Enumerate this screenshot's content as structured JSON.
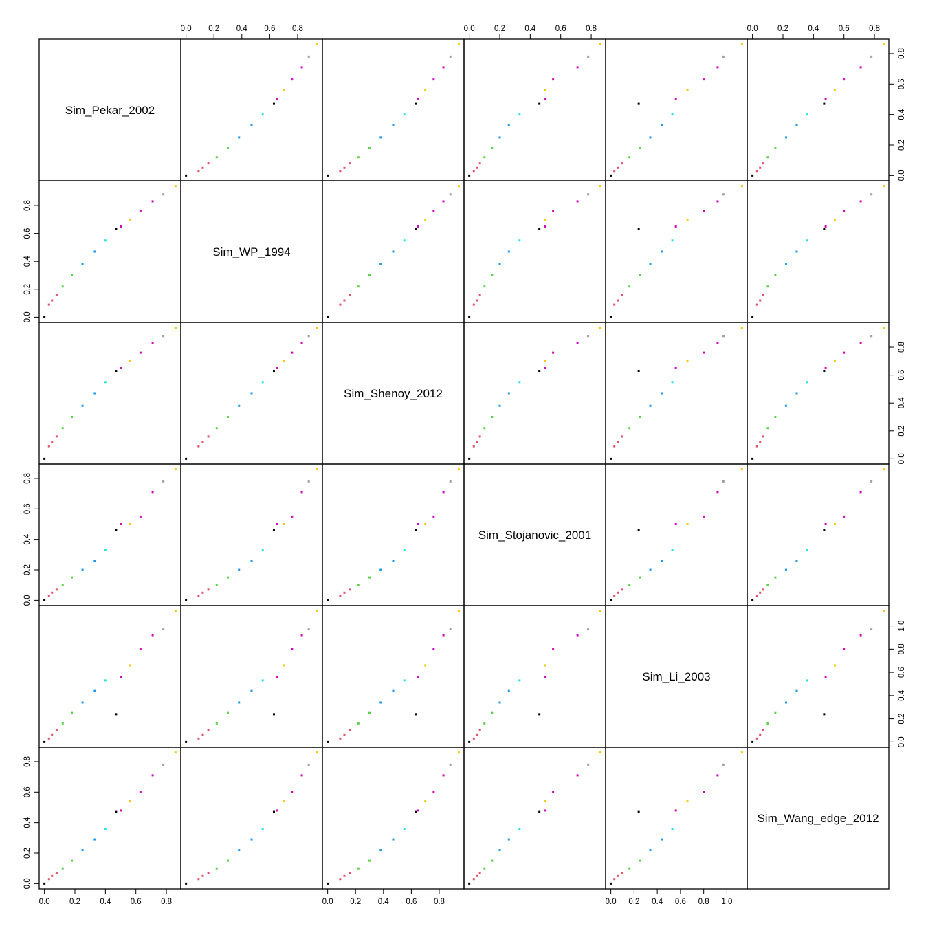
{
  "chart_data": {
    "type": "scatter",
    "subtype": "pairs-matrix",
    "variables": [
      {
        "name": "Sim_Pekar_2002",
        "lim": [
          0,
          0.86
        ],
        "ticks": [
          0.0,
          0.2,
          0.4,
          0.6,
          0.8
        ],
        "tick_labels": [
          "0.0",
          "0.2",
          "0.4",
          "0.6",
          "0.8"
        ]
      },
      {
        "name": "Sim_WP_1994",
        "lim": [
          0,
          0.94
        ],
        "ticks": [
          0.0,
          0.2,
          0.4,
          0.6,
          0.8
        ],
        "tick_labels": [
          "0.0",
          "0.2",
          "0.4",
          "0.6",
          "0.8"
        ]
      },
      {
        "name": "Sim_Shenoy_2012",
        "lim": [
          0,
          0.94
        ],
        "ticks": [
          0.0,
          0.2,
          0.4,
          0.6,
          0.8
        ],
        "tick_labels": [
          "0.0",
          "0.2",
          "0.4",
          "0.6",
          "0.8"
        ]
      },
      {
        "name": "Sim_Stojanovic_2001",
        "lim": [
          0,
          0.86
        ],
        "ticks": [
          0.0,
          0.2,
          0.4,
          0.6,
          0.8
        ],
        "tick_labels": [
          "0.0",
          "0.2",
          "0.4",
          "0.6",
          "0.8"
        ]
      },
      {
        "name": "Sim_Li_2003",
        "lim": [
          0,
          1.13
        ],
        "ticks": [
          0.0,
          0.2,
          0.4,
          0.6,
          0.8,
          1.0
        ],
        "tick_labels": [
          "0.0",
          "0.2",
          "0.4",
          "0.6",
          "0.8",
          "1.0"
        ]
      },
      {
        "name": "Sim_Wang_edge_2012",
        "lim": [
          0,
          0.86
        ],
        "ticks": [
          0.0,
          0.2,
          0.4,
          0.6,
          0.8
        ],
        "tick_labels": [
          "0.0",
          "0.2",
          "0.4",
          "0.6",
          "0.8"
        ]
      }
    ],
    "axes": {
      "top_axis_columns": [
        1,
        3,
        5
      ],
      "bottom_axis_columns": [
        0,
        2,
        4
      ],
      "left_axis_rows": [
        1,
        3,
        5
      ],
      "right_axis_rows": [
        0,
        2,
        4
      ]
    },
    "group_colors": {
      "black": "#000000",
      "red": "#DF536B",
      "green": "#61D04F",
      "blue": "#2297E6",
      "cyan": "#28E2E5",
      "magenta": "#CD0BBC",
      "orange": "#F5C710",
      "gray": "#9E9E9E"
    },
    "points_description": "Pairwise scatterplots of six similarity measures for the same set of node pairs; points colored by group (black, red, green, blue, cyan, magenta, orange, gray).",
    "sample_points": [
      {
        "Sim_Pekar_2002": 0.0,
        "Sim_WP_1994": 0.0,
        "Sim_Shenoy_2012": 0.0,
        "Sim_Stojanovic_2001": 0.0,
        "Sim_Li_2003": 0.0,
        "Sim_Wang_edge_2012": 0.0,
        "group": "black"
      },
      {
        "Sim_Pekar_2002": 0.03,
        "Sim_WP_1994": 0.09,
        "Sim_Shenoy_2012": 0.09,
        "Sim_Stojanovic_2001": 0.03,
        "Sim_Li_2003": 0.03,
        "Sim_Wang_edge_2012": 0.03,
        "group": "red"
      },
      {
        "Sim_Pekar_2002": 0.05,
        "Sim_WP_1994": 0.12,
        "Sim_Shenoy_2012": 0.12,
        "Sim_Stojanovic_2001": 0.05,
        "Sim_Li_2003": 0.06,
        "Sim_Wang_edge_2012": 0.05,
        "group": "red"
      },
      {
        "Sim_Pekar_2002": 0.08,
        "Sim_WP_1994": 0.16,
        "Sim_Shenoy_2012": 0.16,
        "Sim_Stojanovic_2001": 0.07,
        "Sim_Li_2003": 0.1,
        "Sim_Wang_edge_2012": 0.07,
        "group": "red"
      },
      {
        "Sim_Pekar_2002": 0.12,
        "Sim_WP_1994": 0.22,
        "Sim_Shenoy_2012": 0.22,
        "Sim_Stojanovic_2001": 0.1,
        "Sim_Li_2003": 0.16,
        "Sim_Wang_edge_2012": 0.1,
        "group": "green"
      },
      {
        "Sim_Pekar_2002": 0.18,
        "Sim_WP_1994": 0.3,
        "Sim_Shenoy_2012": 0.3,
        "Sim_Stojanovic_2001": 0.15,
        "Sim_Li_2003": 0.25,
        "Sim_Wang_edge_2012": 0.15,
        "group": "green"
      },
      {
        "Sim_Pekar_2002": 0.25,
        "Sim_WP_1994": 0.38,
        "Sim_Shenoy_2012": 0.38,
        "Sim_Stojanovic_2001": 0.2,
        "Sim_Li_2003": 0.34,
        "Sim_Wang_edge_2012": 0.22,
        "group": "blue"
      },
      {
        "Sim_Pekar_2002": 0.33,
        "Sim_WP_1994": 0.47,
        "Sim_Shenoy_2012": 0.47,
        "Sim_Stojanovic_2001": 0.26,
        "Sim_Li_2003": 0.44,
        "Sim_Wang_edge_2012": 0.29,
        "group": "blue"
      },
      {
        "Sim_Pekar_2002": 0.4,
        "Sim_WP_1994": 0.55,
        "Sim_Shenoy_2012": 0.55,
        "Sim_Stojanovic_2001": 0.33,
        "Sim_Li_2003": 0.53,
        "Sim_Wang_edge_2012": 0.36,
        "group": "cyan"
      },
      {
        "Sim_Pekar_2002": 0.47,
        "Sim_WP_1994": 0.63,
        "Sim_Shenoy_2012": 0.63,
        "Sim_Stojanovic_2001": 0.46,
        "Sim_Li_2003": 0.24,
        "Sim_Wang_edge_2012": 0.47,
        "group": "black"
      },
      {
        "Sim_Pekar_2002": 0.5,
        "Sim_WP_1994": 0.65,
        "Sim_Shenoy_2012": 0.65,
        "Sim_Stojanovic_2001": 0.5,
        "Sim_Li_2003": 0.56,
        "Sim_Wang_edge_2012": 0.48,
        "group": "magenta"
      },
      {
        "Sim_Pekar_2002": 0.56,
        "Sim_WP_1994": 0.7,
        "Sim_Shenoy_2012": 0.7,
        "Sim_Stojanovic_2001": 0.5,
        "Sim_Li_2003": 0.66,
        "Sim_Wang_edge_2012": 0.54,
        "group": "orange"
      },
      {
        "Sim_Pekar_2002": 0.63,
        "Sim_WP_1994": 0.76,
        "Sim_Shenoy_2012": 0.76,
        "Sim_Stojanovic_2001": 0.55,
        "Sim_Li_2003": 0.8,
        "Sim_Wang_edge_2012": 0.6,
        "group": "magenta"
      },
      {
        "Sim_Pekar_2002": 0.71,
        "Sim_WP_1994": 0.83,
        "Sim_Shenoy_2012": 0.83,
        "Sim_Stojanovic_2001": 0.71,
        "Sim_Li_2003": 0.92,
        "Sim_Wang_edge_2012": 0.71,
        "group": "magenta"
      },
      {
        "Sim_Pekar_2002": 0.78,
        "Sim_WP_1994": 0.88,
        "Sim_Shenoy_2012": 0.88,
        "Sim_Stojanovic_2001": 0.78,
        "Sim_Li_2003": 0.97,
        "Sim_Wang_edge_2012": 0.78,
        "group": "gray"
      },
      {
        "Sim_Pekar_2002": 0.86,
        "Sim_WP_1994": 0.94,
        "Sim_Shenoy_2012": 0.94,
        "Sim_Stojanovic_2001": 0.86,
        "Sim_Li_2003": 1.13,
        "Sim_Wang_edge_2012": 0.86,
        "group": "orange"
      }
    ]
  }
}
